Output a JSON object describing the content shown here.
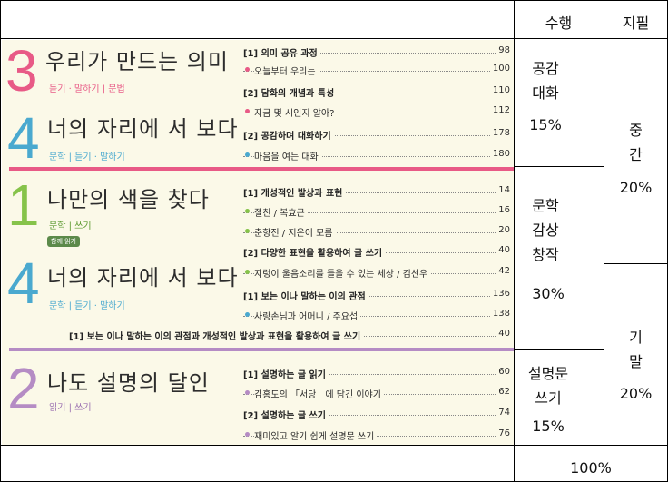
{
  "headers": {
    "perf": "수행",
    "paper": "지필"
  },
  "perf_cells": [
    {
      "line1": "공감",
      "line2": "대화",
      "pct": "15%"
    },
    {
      "line1": "문학",
      "line2": "감상",
      "line3": "창작",
      "pct": "30%"
    },
    {
      "line1": "설명문",
      "line2": "쓰기",
      "pct": "15%"
    }
  ],
  "paper_cells": [
    {
      "line1": "중",
      "line2": "간",
      "pct": "20%"
    },
    {
      "line1": "기",
      "line2": "말",
      "pct": "20%"
    }
  ],
  "total": "100%",
  "textbook": {
    "units": [
      {
        "num": "3",
        "title": "우리가 만드는 의미",
        "sub": "듣기 · 말하기 | 문법",
        "color": "#e85a86"
      },
      {
        "num": "4",
        "title": "너의 자리에 서 보다",
        "sub": "문학 | 듣기 · 말하기",
        "color": "#4aa9cf"
      },
      {
        "num": "1",
        "title": "나만의 색을 찾다",
        "sub": "문학 | 쓰기",
        "color": "#86c34a",
        "badge": "함께 읽기"
      },
      {
        "num": "4",
        "title": "너의 자리에 서 보다",
        "sub": "문학 | 듣기 · 말하기",
        "color": "#4aa9cf"
      },
      {
        "num": "2",
        "title": "나도 설명의 달인",
        "sub": "읽기 | 쓰기",
        "color": "#b58cc4"
      }
    ],
    "toc": [
      {
        "text": "[1] 의미 공유 과정",
        "page": "98"
      },
      {
        "text": "오늘부터 우리는",
        "page": "100"
      },
      {
        "text": "[2] 담화의 개념과 특성",
        "page": "110"
      },
      {
        "text": "지금 몇 시인지 알아?",
        "page": "112"
      },
      {
        "text": "[2] 공감하며 대화하기",
        "page": "178"
      },
      {
        "text": "마음을 여는 대화",
        "page": "180"
      },
      {
        "text": "[1] 개성적인 발상과 표현",
        "page": "14"
      },
      {
        "text": "절친 / 복효근",
        "page": "16"
      },
      {
        "text": "춘향전 / 지은이 모름",
        "page": "20"
      },
      {
        "text": "[2] 다양한 표현을 활용하여 글 쓰기",
        "page": "40"
      },
      {
        "text": "지렁이 울음소리를 들을 수 있는 세상 / 김선우",
        "page": "42"
      },
      {
        "text": "[1] 보는 이나 말하는 이의 관점",
        "page": "136"
      },
      {
        "text": "사랑손님과 어머니 / 주요섭",
        "page": "138"
      },
      {
        "text": "[1] 보는 이나 말하는 이의 관점과 개성적인 발상과 표현을 활용하여 글 쓰기",
        "page": "40"
      },
      {
        "text": "[1] 설명하는 글 읽기",
        "page": "60"
      },
      {
        "text": "김홍도의 「서당」에 담긴 이야기",
        "page": "62"
      },
      {
        "text": "[2] 설명하는 글 쓰기",
        "page": "74"
      },
      {
        "text": "재미있고 알기 쉽게 설명문 쓰기",
        "page": "76"
      }
    ]
  }
}
